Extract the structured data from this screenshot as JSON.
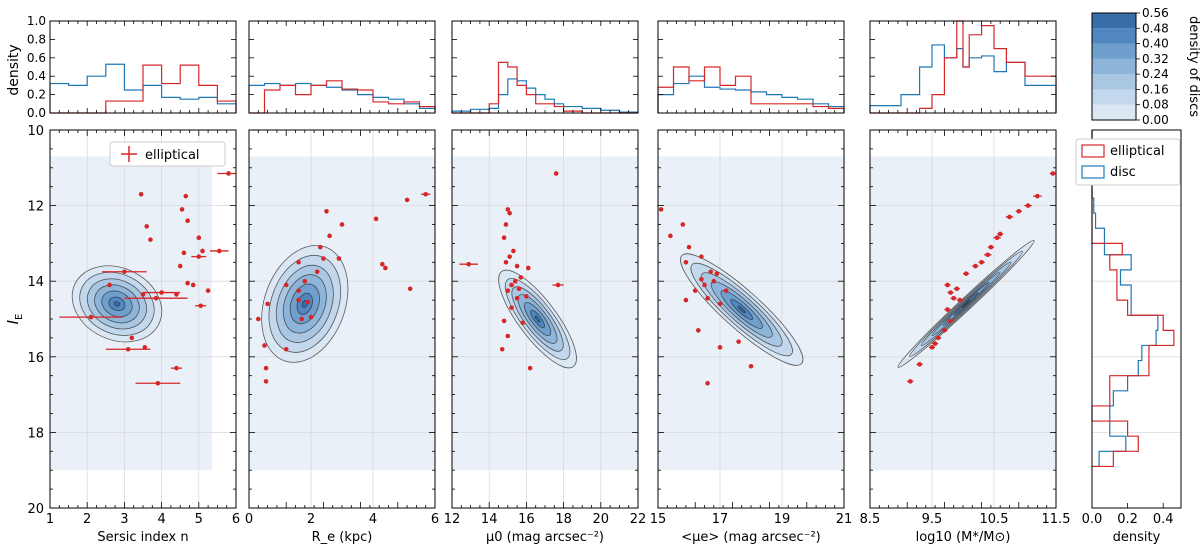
{
  "chart_data": {
    "type": "scatter",
    "title": "",
    "ylabel": "I_E",
    "ylim": [
      20,
      10
    ],
    "yticks": [
      10,
      12,
      14,
      16,
      18,
      20
    ],
    "hist_ylabel": "density",
    "hist_ylim": [
      0,
      1.0
    ],
    "hist_yticks": [
      "0.0",
      "0.2",
      "0.4",
      "0.6",
      "0.8",
      "1.0"
    ],
    "legend_scatter": "elliptical",
    "legend_hist": {
      "elliptical": "elliptical",
      "disc": "disc",
      "placement": "top"
    },
    "colors": {
      "elliptical": "#d62728",
      "disc": "#1f77b4",
      "band": "#e9f0f8"
    },
    "colorbar": {
      "label": "density of discs",
      "ticks": [
        "0.00",
        "0.08",
        "0.16",
        "0.24",
        "0.32",
        "0.40",
        "0.48",
        "0.56"
      ],
      "levels": [
        "#f2f7fc",
        "#dbe8f4",
        "#c3d8ec",
        "#a9c7e3",
        "#8db4d9",
        "#6f9fcd",
        "#5087c0",
        "#386fab"
      ]
    },
    "right_hist": {
      "xlabel": "density",
      "xticks": [
        "0.0",
        "0.2",
        "0.4"
      ],
      "xlim": [
        0,
        0.5
      ],
      "edges": [
        10,
        11.8,
        12.2,
        12.6,
        13,
        13.3,
        13.7,
        14.1,
        14.5,
        14.9,
        15.3,
        15.7,
        16.1,
        16.5,
        16.9,
        17.3,
        17.7,
        18.1,
        18.5,
        18.9
      ],
      "elliptical": [
        0,
        0,
        0,
        0,
        0.17,
        0.1,
        0.14,
        0.14,
        0.2,
        0.4,
        0.46,
        0.32,
        0.32,
        0.1,
        0.1,
        0,
        0.2,
        0.26,
        0.12
      ],
      "disc": [
        0,
        0.01,
        0.02,
        0.07,
        0.07,
        0.22,
        0.16,
        0.22,
        0.22,
        0.37,
        0.36,
        0.28,
        0.26,
        0.2,
        0.12,
        0.1,
        0.1,
        0.19,
        0.04
      ]
    },
    "panels": [
      {
        "xlabel": "Sersic index n",
        "xlim": [
          1,
          6
        ],
        "xticks": [
          "1",
          "2",
          "3",
          "4",
          "5",
          "6"
        ],
        "band": [
          1,
          5.35
        ],
        "kde": {
          "cx": 2.8,
          "cy": 14.6,
          "rx": 1.25,
          "ry": 0.95,
          "angle": 25
        },
        "hist_edges": [
          1,
          1.5,
          2,
          2.5,
          3,
          3.5,
          4,
          4.5,
          5,
          5.5,
          6
        ],
        "hist_elliptical": [
          0,
          0,
          0,
          0.13,
          0.13,
          0.52,
          0.32,
          0.52,
          0.3,
          0.13
        ],
        "hist_disc": [
          0.32,
          0.3,
          0.4,
          0.53,
          0.25,
          0.3,
          0.17,
          0.15,
          0.17,
          0.1
        ],
        "points": [
          [
            5.8,
            11.15,
            0.3
          ],
          [
            3.45,
            11.7,
            0
          ],
          [
            4.65,
            11.75,
            0
          ],
          [
            4.55,
            12.1,
            0
          ],
          [
            4.7,
            12.4,
            0
          ],
          [
            3.6,
            12.55,
            0
          ],
          [
            5.0,
            12.85,
            0
          ],
          [
            3.7,
            12.9,
            0
          ],
          [
            5.55,
            13.2,
            0.25
          ],
          [
            5.1,
            13.2,
            0
          ],
          [
            4.6,
            13.25,
            0
          ],
          [
            5.0,
            13.35,
            0.2
          ],
          [
            4.5,
            13.6,
            0
          ],
          [
            3.0,
            13.75,
            0.6
          ],
          [
            4.7,
            14.05,
            0
          ],
          [
            4.85,
            14.1,
            0
          ],
          [
            2.6,
            14.1,
            0
          ],
          [
            5.25,
            14.25,
            0
          ],
          [
            4.0,
            14.3,
            0.5
          ],
          [
            3.5,
            14.35,
            0
          ],
          [
            4.4,
            14.35,
            0
          ],
          [
            3.85,
            14.45,
            0.85
          ],
          [
            5.05,
            14.65,
            0.15
          ],
          [
            2.1,
            14.95,
            0.85
          ],
          [
            3.2,
            15.5,
            0
          ],
          [
            3.55,
            15.75,
            0
          ],
          [
            3.1,
            15.8,
            0.6
          ],
          [
            4.4,
            16.3,
            0.15
          ],
          [
            3.9,
            16.7,
            0.6
          ]
        ]
      },
      {
        "xlabel": "R_e (kpc)",
        "xlim": [
          0,
          6
        ],
        "xticks": [
          "0",
          "2",
          "4",
          "6"
        ],
        "band": [
          0,
          6
        ],
        "kde": {
          "cx": 1.8,
          "cy": 14.6,
          "rx": 1.3,
          "ry": 1.6,
          "angle": 20
        },
        "hist_edges": [
          0,
          0.5,
          1,
          1.5,
          2,
          2.5,
          3,
          3.5,
          4,
          4.5,
          5,
          5.5,
          6
        ],
        "hist_elliptical": [
          0,
          0.25,
          0.3,
          0.2,
          0.3,
          0.35,
          0.26,
          0.25,
          0.12,
          0.1,
          0.12,
          0.07
        ],
        "hist_disc": [
          0.3,
          0.32,
          0.3,
          0.32,
          0.3,
          0.28,
          0.25,
          0.2,
          0.17,
          0.15,
          0.1,
          0.05
        ],
        "points": [
          [
            5.7,
            11.7,
            0.15
          ],
          [
            5.1,
            11.85,
            0
          ],
          [
            2.5,
            12.15,
            0
          ],
          [
            4.1,
            12.35,
            0
          ],
          [
            3.0,
            12.5,
            0
          ],
          [
            2.6,
            12.8,
            0
          ],
          [
            2.3,
            13.1,
            0
          ],
          [
            2.4,
            13.4,
            0
          ],
          [
            2.9,
            13.4,
            0
          ],
          [
            1.6,
            13.5,
            0
          ],
          [
            4.3,
            13.55,
            0
          ],
          [
            4.4,
            13.65,
            0
          ],
          [
            2.2,
            13.75,
            0
          ],
          [
            1.8,
            14.0,
            0
          ],
          [
            1.2,
            14.1,
            0
          ],
          [
            5.2,
            14.2,
            0
          ],
          [
            1.6,
            14.25,
            0
          ],
          [
            1.6,
            14.5,
            0
          ],
          [
            1.9,
            14.55,
            0
          ],
          [
            0.6,
            14.6,
            0
          ],
          [
            2.0,
            14.95,
            0
          ],
          [
            0.3,
            15.0,
            0
          ],
          [
            1.7,
            15.0,
            0
          ],
          [
            0.5,
            15.7,
            0
          ],
          [
            1.2,
            15.8,
            0
          ],
          [
            0.55,
            16.3,
            0
          ],
          [
            0.55,
            16.65,
            0
          ]
        ]
      },
      {
        "xlabel": "μ0 (mag arcsec⁻²)",
        "xlim": [
          12,
          22
        ],
        "xticks": [
          "12",
          "14",
          "16",
          "18",
          "20",
          "22"
        ],
        "band": [
          12,
          22
        ],
        "kde": {
          "cx": 16.6,
          "cy": 15.0,
          "rx": 3.2,
          "ry": 0.5,
          "angle": 53
        },
        "hist_edges": [
          12,
          13,
          14,
          14.5,
          15,
          15.5,
          16,
          16.5,
          17,
          17.5,
          18,
          19,
          20,
          21,
          22
        ],
        "hist_elliptical": [
          0,
          0,
          0.1,
          0.55,
          0.5,
          0.3,
          0.2,
          0.1,
          0.1,
          0.07,
          0.02,
          0,
          0,
          0
        ],
        "hist_disc": [
          0.02,
          0.04,
          0.05,
          0.2,
          0.37,
          0.35,
          0.27,
          0.2,
          0.15,
          0.1,
          0.07,
          0.05,
          0.03,
          0.01
        ],
        "points": [
          [
            17.6,
            11.15,
            0
          ],
          [
            15.0,
            12.1,
            0
          ],
          [
            15.1,
            12.2,
            0
          ],
          [
            14.9,
            12.5,
            0
          ],
          [
            14.8,
            12.85,
            0
          ],
          [
            15.3,
            13.2,
            0
          ],
          [
            15.1,
            13.35,
            0
          ],
          [
            14.9,
            13.5,
            0
          ],
          [
            12.9,
            13.55,
            0.5
          ],
          [
            15.5,
            13.6,
            0
          ],
          [
            16.1,
            13.65,
            0
          ],
          [
            15.7,
            13.9,
            0
          ],
          [
            15.4,
            14.0,
            0
          ],
          [
            15.2,
            14.1,
            0
          ],
          [
            15.6,
            14.2,
            0
          ],
          [
            15.0,
            14.25,
            0
          ],
          [
            16.0,
            14.4,
            0
          ],
          [
            15.5,
            14.45,
            0
          ],
          [
            17.7,
            14.1,
            0.3
          ],
          [
            15.2,
            14.7,
            0
          ],
          [
            14.8,
            15.05,
            0
          ],
          [
            15.8,
            15.1,
            0
          ],
          [
            15.0,
            15.45,
            0
          ],
          [
            14.7,
            15.8,
            0
          ],
          [
            16.2,
            16.3,
            0
          ]
        ]
      },
      {
        "xlabel": "<μe> (mag arcsec⁻²)",
        "xlim": [
          15,
          21
        ],
        "xticks": [
          "15",
          "17",
          "19",
          "21"
        ],
        "band": [
          15,
          21
        ],
        "kde": {
          "cx": 17.7,
          "cy": 14.75,
          "rx": 2.6,
          "ry": 0.5,
          "angle": 42
        },
        "hist_edges": [
          15,
          15.5,
          16,
          16.5,
          17,
          17.5,
          18,
          18.5,
          19,
          19.5,
          20,
          20.5,
          21
        ],
        "hist_elliptical": [
          0.28,
          0.5,
          0.35,
          0.5,
          0.3,
          0.4,
          0.1,
          0.1,
          0.1,
          0.1,
          0.07,
          0.05
        ],
        "hist_disc": [
          0.2,
          0.32,
          0.4,
          0.28,
          0.26,
          0.25,
          0.23,
          0.2,
          0.17,
          0.15,
          0.1,
          0.07
        ],
        "points": [
          [
            15.1,
            12.1,
            0
          ],
          [
            15.8,
            12.5,
            0
          ],
          [
            15.4,
            12.8,
            0
          ],
          [
            16.0,
            13.1,
            0
          ],
          [
            16.4,
            13.35,
            0
          ],
          [
            15.9,
            13.5,
            0
          ],
          [
            16.7,
            13.75,
            0
          ],
          [
            16.9,
            13.8,
            0
          ],
          [
            16.4,
            13.95,
            0
          ],
          [
            16.8,
            14.0,
            0
          ],
          [
            16.5,
            14.1,
            0
          ],
          [
            16.2,
            14.25,
            0
          ],
          [
            17.2,
            14.25,
            0
          ],
          [
            16.6,
            14.45,
            0
          ],
          [
            15.9,
            14.5,
            0
          ],
          [
            17.0,
            14.6,
            0
          ],
          [
            16.3,
            15.3,
            0
          ],
          [
            17.6,
            15.6,
            0
          ],
          [
            17.0,
            15.75,
            0
          ],
          [
            18.0,
            16.25,
            0
          ],
          [
            16.6,
            16.7,
            0
          ]
        ]
      },
      {
        "xlabel": "log10 (M*/M⊙)",
        "xlim": [
          8.5,
          11.5
        ],
        "xticks": [
          "8.5",
          "9.5",
          "10.5",
          "11.5"
        ],
        "band": [
          8.5,
          11.5
        ],
        "kde": {
          "cx": 10.05,
          "cy": 14.6,
          "rx": 1.5,
          "ry": 0.16,
          "angle": -43
        },
        "hist_edges": [
          8.5,
          9,
          9.3,
          9.5,
          9.7,
          9.9,
          10,
          10.1,
          10.3,
          10.5,
          10.7,
          11,
          11.5
        ],
        "hist_elliptical": [
          0,
          0,
          0.05,
          0.2,
          0.6,
          1.0,
          0.5,
          0.85,
          0.95,
          0.7,
          0.55,
          0.4
        ],
        "hist_disc": [
          0.08,
          0.2,
          0.5,
          0.74,
          0.6,
          0.7,
          0.5,
          0.6,
          0.62,
          0.45,
          0.55,
          0.3
        ],
        "points": [
          [
            11.45,
            11.15,
            0.05
          ],
          [
            11.2,
            11.75,
            0.07
          ],
          [
            11.05,
            12.0,
            0.06
          ],
          [
            10.9,
            12.15,
            0.05
          ],
          [
            10.75,
            12.3,
            0.06
          ],
          [
            10.6,
            12.75,
            0.05
          ],
          [
            10.55,
            12.85,
            0.06
          ],
          [
            10.45,
            13.1,
            0.05
          ],
          [
            10.4,
            13.3,
            0.06
          ],
          [
            10.3,
            13.5,
            0.05
          ],
          [
            10.2,
            13.6,
            0.05
          ],
          [
            10.05,
            13.8,
            0.05
          ],
          [
            9.75,
            14.1,
            0.05
          ],
          [
            9.9,
            14.2,
            0.05
          ],
          [
            9.8,
            14.3,
            0.05
          ],
          [
            9.85,
            14.45,
            0.05
          ],
          [
            9.95,
            14.5,
            0.05
          ],
          [
            9.75,
            14.75,
            0.05
          ],
          [
            9.8,
            15.05,
            0.05
          ],
          [
            9.7,
            15.3,
            0.05
          ],
          [
            9.6,
            15.5,
            0.05
          ],
          [
            9.55,
            15.65,
            0.05
          ],
          [
            9.5,
            15.75,
            0.05
          ],
          [
            9.3,
            16.2,
            0.05
          ],
          [
            9.15,
            16.65,
            0.05
          ]
        ]
      }
    ]
  }
}
